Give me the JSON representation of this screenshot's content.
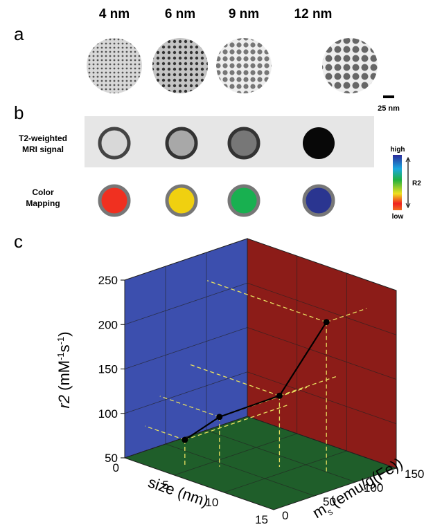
{
  "panel_a": {
    "label": "a",
    "sizes": [
      "4 nm",
      "6 nm",
      "9 nm",
      "12 nm"
    ],
    "scale_bar": "25 nm"
  },
  "panel_b": {
    "label": "b",
    "row_labels": [
      [
        "T2-weighted",
        "MRI signal"
      ],
      [
        "Color",
        "Mapping"
      ]
    ],
    "colorbar": {
      "high": "high",
      "low": "low",
      "name": "R2"
    }
  },
  "chart_data": {
    "type": "line3d",
    "panel_label": "c",
    "color": "#000000",
    "x_label": "size (nm)",
    "y_label": {
      "main": "m",
      "sub": "s",
      "rest": " (emu/g(Fe))"
    },
    "z_label": {
      "italic": "r2",
      "parts": [
        " (mM",
        "-1",
        "s",
        "-1",
        ")"
      ]
    },
    "x": [
      4,
      6,
      9,
      12
    ],
    "y": [
      25,
      43,
      80,
      101
    ],
    "z": [
      78,
      106,
      130,
      218
    ],
    "xlim": [
      0,
      15
    ],
    "ylim": [
      0,
      150
    ],
    "zlim": [
      50,
      250
    ],
    "xticks": [
      0,
      5,
      10,
      15
    ],
    "yticks": [
      0,
      50,
      100,
      150
    ],
    "zticks": [
      50,
      100,
      150,
      200,
      250
    ],
    "grid": true
  }
}
